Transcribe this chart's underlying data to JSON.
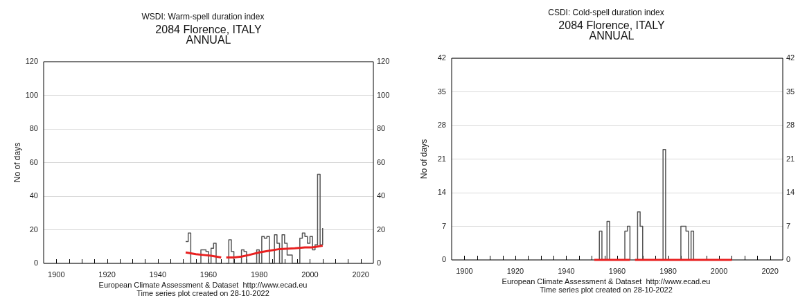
{
  "chart_data": [
    {
      "type": "step",
      "title": "WSDI: Warm-spell duration index",
      "subtitle": "2084 Florence, ITALY\nANNUAL",
      "ylabel": "No of days",
      "annotations": [
        "European Climate Assessment & Dataset  http://www.ecad.eu",
        "Time series plot created on 28-10-2022"
      ],
      "xlim": [
        1895,
        2025
      ],
      "xticks": [
        1900,
        {
          "value": 1905,
          "label": null
        },
        {
          "value": 1910,
          "label": null
        },
        {
          "value": 1915,
          "label": null
        },
        1920,
        {
          "value": 1925,
          "label": null
        },
        {
          "value": 1930,
          "label": null
        },
        {
          "value": 1935,
          "label": null
        },
        1940,
        {
          "value": 1945,
          "label": null
        },
        {
          "value": 1950,
          "label": null
        },
        {
          "value": 1955,
          "label": null
        },
        1960,
        {
          "value": 1965,
          "label": null
        },
        {
          "value": 1970,
          "label": null
        },
        {
          "value": 1975,
          "label": null
        },
        1980,
        {
          "value": 1985,
          "label": null
        },
        {
          "value": 1990,
          "label": null
        },
        {
          "value": 1995,
          "label": null
        },
        2000,
        {
          "value": 2005,
          "label": null
        },
        {
          "value": 2010,
          "label": null
        },
        {
          "value": 2015,
          "label": null
        },
        2020
      ],
      "ylim": [
        0,
        120
      ],
      "yticks": [
        0,
        20,
        40,
        60,
        80,
        100,
        120
      ],
      "y2lim": [
        0,
        120
      ],
      "y2ticks": [
        0,
        20,
        40,
        60,
        80,
        100,
        120
      ],
      "grid": "y",
      "series": [
        {
          "color": "#555555",
          "x": [
            1951,
            1952,
            1953,
            1954,
            1955,
            1956,
            1957,
            1958,
            1959,
            1960,
            1961,
            1962,
            1963,
            1964,
            1965,
            1966,
            1967,
            1968,
            1969,
            1970,
            1971,
            1972,
            1973,
            1974,
            1975,
            1976,
            1977,
            1978,
            1979,
            1980,
            1981,
            1982,
            1983,
            1984,
            1985,
            1986,
            1987,
            1988,
            1989,
            1990,
            1991,
            1992,
            1993,
            1994,
            1995,
            1996,
            1997,
            1998,
            1999,
            2000,
            2001,
            2002,
            2003,
            2004,
            2005
          ],
          "values": [
            13,
            18,
            0,
            0,
            0,
            0,
            8,
            8,
            7,
            0,
            9,
            12,
            0,
            0,
            0,
            null,
            0,
            14,
            7,
            0,
            0,
            0,
            8,
            7,
            0,
            0,
            0,
            0,
            8,
            0,
            16,
            15,
            16,
            0,
            0,
            17,
            12,
            0,
            17,
            12,
            5,
            5,
            0,
            0,
            0,
            15,
            18,
            16,
            12,
            16,
            8,
            11,
            53,
            11,
            21
          ]
        },
        {
          "type": "line",
          "color": "#e82020",
          "x": [
            1951,
            1955,
            1958,
            1961,
            1965,
            1966,
            1967,
            1970,
            1973,
            1976,
            1980,
            1984,
            1988,
            1994,
            1998,
            2001,
            2005
          ],
          "values": [
            6.5,
            5.5,
            5,
            4.5,
            3.5,
            null,
            3.5,
            3.5,
            4,
            5,
            6.5,
            7.5,
            8.5,
            9,
            9.5,
            9.5,
            10.5
          ]
        }
      ]
    },
    {
      "type": "step",
      "title": "CSDI: Cold-spell duration index",
      "subtitle": "2084 Florence, ITALY\nANNUAL",
      "ylabel": "No of days",
      "annotations": [
        "European Climate Assessment & Dataset  http://www.ecad.eu",
        "Time series plot created on 28-10-2022"
      ],
      "xlim": [
        1895,
        2025
      ],
      "xticks": [
        1900,
        {
          "value": 1905,
          "label": null
        },
        {
          "value": 1910,
          "label": null
        },
        {
          "value": 1915,
          "label": null
        },
        1920,
        {
          "value": 1925,
          "label": null
        },
        {
          "value": 1930,
          "label": null
        },
        {
          "value": 1935,
          "label": null
        },
        1940,
        {
          "value": 1945,
          "label": null
        },
        {
          "value": 1950,
          "label": null
        },
        {
          "value": 1955,
          "label": null
        },
        1960,
        {
          "value": 1965,
          "label": null
        },
        {
          "value": 1970,
          "label": null
        },
        {
          "value": 1975,
          "label": null
        },
        1980,
        {
          "value": 1985,
          "label": null
        },
        {
          "value": 1990,
          "label": null
        },
        {
          "value": 1995,
          "label": null
        },
        2000,
        {
          "value": 2005,
          "label": null
        },
        {
          "value": 2010,
          "label": null
        },
        {
          "value": 2015,
          "label": null
        },
        2020
      ],
      "ylim": [
        0,
        42
      ],
      "yticks": [
        0,
        7,
        14,
        21,
        28,
        35,
        42
      ],
      "y2lim": [
        0,
        42
      ],
      "y2ticks": [
        0,
        7,
        14,
        21,
        28,
        35,
        42
      ],
      "grid": "y",
      "series": [
        {
          "color": "#555555",
          "x": [
            1951,
            1952,
            1953,
            1954,
            1955,
            1956,
            1957,
            1958,
            1959,
            1960,
            1961,
            1962,
            1963,
            1964,
            1965,
            1966,
            1967,
            1968,
            1969,
            1970,
            1971,
            1972,
            1973,
            1974,
            1975,
            1976,
            1977,
            1978,
            1979,
            1980,
            1981,
            1982,
            1983,
            1984,
            1985,
            1986,
            1987,
            1988,
            1989,
            1990,
            1991,
            1992,
            1993,
            1994,
            1995,
            1996,
            1997,
            1998,
            1999,
            2000,
            2001,
            2002,
            2003,
            2004,
            2005
          ],
          "values": [
            0,
            0,
            6,
            0,
            0,
            8,
            0,
            0,
            0,
            0,
            0,
            0,
            6,
            7,
            0,
            null,
            0,
            10,
            7,
            0,
            0,
            0,
            0,
            0,
            0,
            0,
            0,
            23,
            0,
            0,
            0,
            0,
            0,
            0,
            7,
            7,
            6,
            0,
            6,
            0,
            0,
            0,
            0,
            0,
            0,
            0,
            0,
            0,
            0,
            0,
            0,
            0,
            0,
            0,
            0
          ]
        },
        {
          "type": "line",
          "color": "#e82020",
          "x": [
            1951,
            1965,
            1966,
            1967,
            2005
          ],
          "values": [
            0,
            0,
            null,
            0,
            0
          ]
        }
      ]
    }
  ]
}
